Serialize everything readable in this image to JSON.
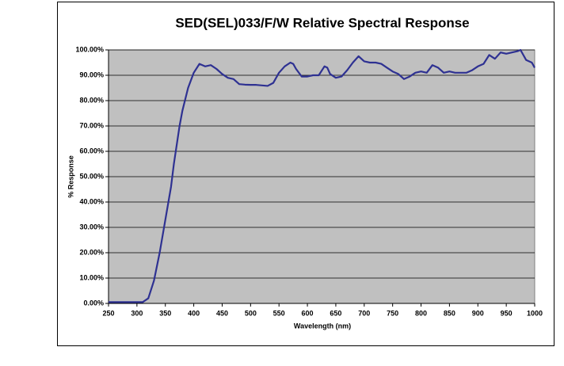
{
  "chart_data": {
    "type": "line",
    "title": "SED(SEL)033/F/W Relative Spectral Response",
    "x_label": "Wavelength (nm)",
    "y_label": "% Response",
    "color": "#2e3192",
    "grid": true,
    "xlim": [
      250,
      1000
    ],
    "ylim": [
      0,
      100
    ],
    "xticks": [
      250,
      300,
      350,
      400,
      450,
      500,
      550,
      600,
      650,
      700,
      750,
      800,
      850,
      900,
      950,
      1000
    ],
    "yticks": [
      {
        "value": 0,
        "label": "0.00%"
      },
      {
        "value": 10,
        "label": "10.00%"
      },
      {
        "value": 20,
        "label": "20.00%"
      },
      {
        "value": 30,
        "label": "30.00%"
      },
      {
        "value": 40,
        "label": "40.00%"
      },
      {
        "value": 50,
        "label": "50.00%"
      },
      {
        "value": 60,
        "label": "60.00%"
      },
      {
        "value": 70,
        "label": "70.00%"
      },
      {
        "value": 80,
        "label": "80.00%"
      },
      {
        "value": 90,
        "label": "90.00%"
      },
      {
        "value": 100,
        "label": "100.00%"
      }
    ],
    "x": [
      250,
      300,
      310,
      320,
      330,
      340,
      350,
      360,
      365,
      375,
      380,
      390,
      400,
      410,
      420,
      430,
      440,
      450,
      460,
      470,
      480,
      490,
      500,
      510,
      520,
      530,
      540,
      550,
      560,
      570,
      575,
      580,
      590,
      600,
      610,
      620,
      630,
      635,
      640,
      650,
      660,
      670,
      680,
      690,
      700,
      710,
      720,
      730,
      740,
      750,
      760,
      770,
      780,
      790,
      800,
      810,
      820,
      830,
      840,
      850,
      860,
      870,
      880,
      890,
      900,
      910,
      920,
      930,
      940,
      950,
      960,
      970,
      975,
      985,
      995,
      1000
    ],
    "values": [
      0.5,
      0.5,
      0.5,
      2,
      9,
      20,
      33,
      46,
      55,
      70,
      76,
      85,
      91,
      94.5,
      93.5,
      94,
      92.5,
      90.5,
      89,
      88.5,
      86.5,
      86.3,
      86.2,
      86.2,
      86,
      85.8,
      87,
      91,
      93.5,
      95,
      94.5,
      92.5,
      89.5,
      89.5,
      90,
      90,
      93.5,
      93,
      90.5,
      89,
      89.5,
      92,
      95,
      97.5,
      95.5,
      95,
      95,
      94.5,
      93,
      91.5,
      90.5,
      88.5,
      89.5,
      91,
      91.5,
      91,
      94,
      93,
      91,
      91.5,
      91,
      91,
      91,
      92,
      93.5,
      94.5,
      98,
      96.5,
      99,
      98.5,
      99,
      99.5,
      100,
      96,
      95,
      93
    ]
  }
}
